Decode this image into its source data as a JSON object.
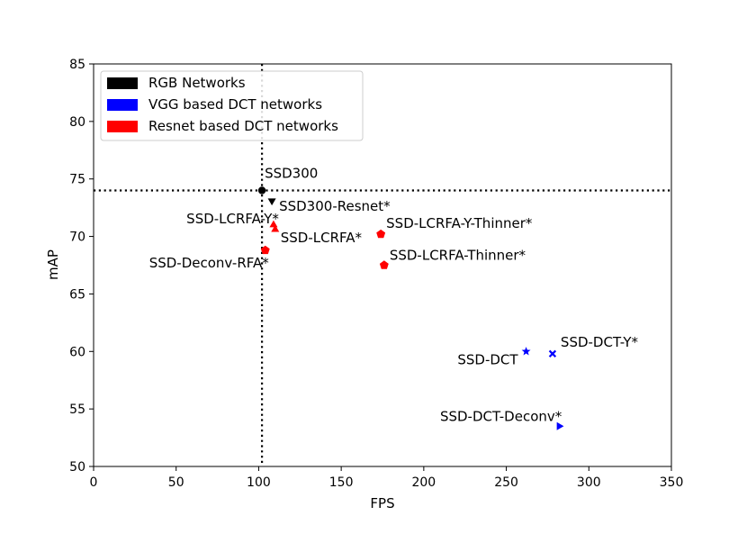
{
  "chart_data": {
    "type": "scatter",
    "xlabel": "FPS",
    "ylabel": "mAP",
    "xlim": [
      0,
      350
    ],
    "ylim": [
      50,
      85
    ],
    "x_ticks": [
      0,
      50,
      100,
      150,
      200,
      250,
      300,
      350
    ],
    "y_ticks": [
      50,
      55,
      60,
      65,
      70,
      75,
      80,
      85
    ],
    "grid": false,
    "legend_position": "top-left",
    "reference_lines": [
      {
        "orientation": "vertical",
        "x": 102,
        "style": "dotted",
        "color": "#000000"
      },
      {
        "orientation": "horizontal",
        "y": 74,
        "style": "dotted",
        "color": "#000000"
      }
    ],
    "series": [
      {
        "name": "RGB Networks",
        "color": "#000000",
        "points": [
          {
            "label": "SSD300",
            "x": 102,
            "y": 74.0,
            "marker": "circle"
          },
          {
            "label": "SSD300-Resnet*",
            "x": 108,
            "y": 73.1,
            "marker": "triangle-down"
          }
        ]
      },
      {
        "name": "VGG based DCT networks",
        "color": "#0000ff",
        "points": [
          {
            "label": "SSD-DCT",
            "x": 262,
            "y": 60.0,
            "marker": "star"
          },
          {
            "label": "SSD-DCT-Y*",
            "x": 278,
            "y": 59.8,
            "marker": "x-filled"
          },
          {
            "label": "SSD-DCT-Deconv*",
            "x": 282,
            "y": 53.5,
            "marker": "triangle-right"
          }
        ]
      },
      {
        "name": "Resnet based DCT networks",
        "color": "#ff0000",
        "points": [
          {
            "label": "SSD-LCRFA-Y*",
            "x": 109,
            "y": 71.0,
            "marker": "triangle-up"
          },
          {
            "label": "SSD-LCRFA*",
            "x": 110,
            "y": 70.6,
            "marker": "triangle-up"
          },
          {
            "label": "SSD-Deconv-RFA*",
            "x": 104,
            "y": 68.8,
            "marker": "pentagon"
          },
          {
            "label": "SSD-LCRFA-Y-Thinner*",
            "x": 174,
            "y": 70.2,
            "marker": "pentagon"
          },
          {
            "label": "SSD-LCRFA-Thinner*",
            "x": 176,
            "y": 67.5,
            "marker": "pentagon"
          }
        ]
      }
    ]
  }
}
